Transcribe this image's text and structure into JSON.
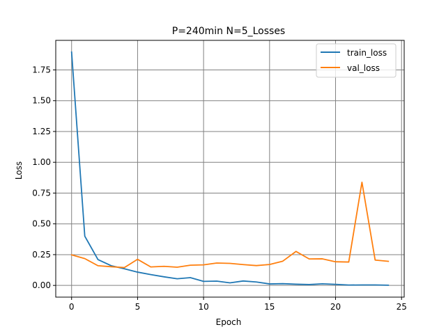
{
  "chart_data": {
    "type": "line",
    "title": "P=240min N=5_Losses",
    "xlabel": "Epoch",
    "ylabel": "Loss",
    "xlim": [
      -1.2,
      25.2
    ],
    "ylim": [
      -0.095,
      1.99
    ],
    "xticks": [
      0,
      5,
      10,
      15,
      20,
      25
    ],
    "xtick_labels": [
      "0",
      "5",
      "10",
      "15",
      "20",
      "25"
    ],
    "yticks": [
      0.0,
      0.25,
      0.5,
      0.75,
      1.0,
      1.25,
      1.5,
      1.75
    ],
    "ytick_labels": [
      "0.00",
      "0.25",
      "0.50",
      "0.75",
      "1.00",
      "1.25",
      "1.50",
      "1.75"
    ],
    "grid": true,
    "legend_position": "top-right",
    "x": [
      0,
      1,
      2,
      3,
      4,
      5,
      6,
      7,
      8,
      9,
      10,
      11,
      12,
      13,
      14,
      15,
      16,
      17,
      18,
      19,
      20,
      21,
      22,
      23,
      24
    ],
    "series": [
      {
        "name": "train_loss",
        "color": "#1f77b4",
        "values": [
          1.895,
          0.4,
          0.21,
          0.16,
          0.135,
          0.108,
          0.088,
          0.07,
          0.054,
          0.063,
          0.033,
          0.035,
          0.021,
          0.036,
          0.028,
          0.012,
          0.014,
          0.01,
          0.007,
          0.013,
          0.009,
          0.003,
          0.004,
          0.004,
          0.002
        ]
      },
      {
        "name": "val_loss",
        "color": "#ff7f0e",
        "values": [
          0.248,
          0.218,
          0.16,
          0.152,
          0.145,
          0.212,
          0.15,
          0.155,
          0.148,
          0.164,
          0.167,
          0.182,
          0.179,
          0.169,
          0.161,
          0.17,
          0.197,
          0.276,
          0.215,
          0.216,
          0.192,
          0.19,
          0.838,
          0.206,
          0.196
        ]
      }
    ]
  }
}
